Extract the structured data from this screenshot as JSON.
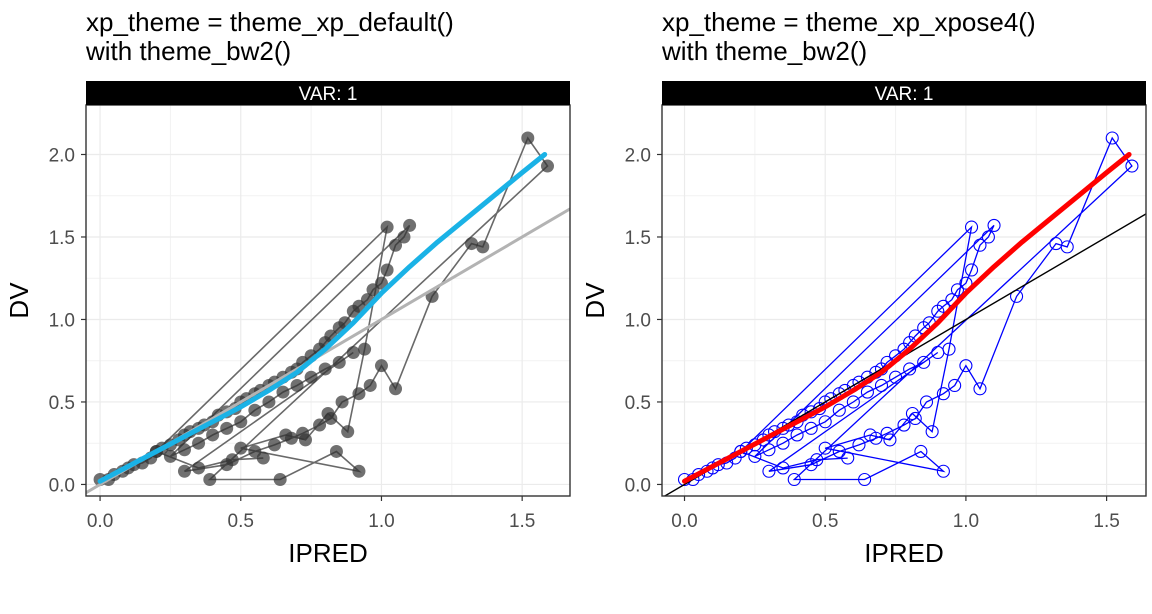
{
  "chart_data": [
    {
      "type": "scatter",
      "title": "xp_theme = theme_xp_default()",
      "subtitle": "with theme_bw2()",
      "strip": "VAR: 1",
      "xlabel": "IPRED",
      "ylabel": "DV",
      "xlim": [
        -0.05,
        1.67
      ],
      "ylim": [
        -0.07,
        2.3
      ],
      "xticks": [
        "0.0",
        "0.5",
        "1.0",
        "1.5"
      ],
      "yticks": [
        "0.0",
        "0.5",
        "1.0",
        "1.5",
        "2.0"
      ],
      "grid": true,
      "legend": "none",
      "colors": {
        "points": "#333333",
        "lines": "#595959",
        "smooth": "#1ab2e6",
        "identity": "#b3b3b3"
      },
      "marker": "filled-circle",
      "identity_line": {
        "slope": 1,
        "intercept": 0
      },
      "smooth": {
        "x": [
          0.0,
          0.1,
          0.2,
          0.3,
          0.4,
          0.5,
          0.6,
          0.7,
          0.8,
          0.9,
          1.0,
          1.1,
          1.2,
          1.3,
          1.4,
          1.5,
          1.58
        ],
        "y": [
          0.02,
          0.11,
          0.2,
          0.29,
          0.38,
          0.47,
          0.57,
          0.68,
          0.82,
          0.98,
          1.16,
          1.32,
          1.47,
          1.61,
          1.75,
          1.89,
          2.0
        ]
      },
      "points": {
        "x": [
          0.0,
          0.03,
          0.05,
          0.08,
          0.1,
          0.12,
          0.15,
          0.18,
          0.2,
          0.22,
          0.25,
          0.28,
          0.3,
          0.32,
          0.35,
          0.37,
          0.4,
          0.42,
          0.45,
          0.48,
          0.5,
          0.52,
          0.55,
          0.57,
          0.6,
          0.62,
          0.65,
          0.68,
          0.7,
          0.72,
          0.75,
          0.78,
          0.8,
          0.82,
          0.85,
          0.87,
          0.9,
          0.92,
          0.95,
          0.97,
          1.0,
          1.02,
          1.05,
          1.08,
          1.1,
          0.25,
          0.3,
          0.35,
          0.4,
          0.45,
          0.5,
          0.55,
          0.6,
          0.65,
          0.7,
          0.75,
          0.8,
          0.85,
          0.9,
          0.3,
          0.45,
          0.55,
          0.62,
          0.68,
          0.72,
          0.78,
          0.82,
          0.86,
          0.92,
          0.96,
          1.0,
          1.05,
          1.18,
          1.32,
          1.36,
          1.52,
          1.59,
          0.39,
          0.64,
          0.84,
          0.92,
          0.5,
          0.66,
          0.73,
          0.81,
          0.88,
          0.94,
          1.02,
          0.2,
          0.35,
          0.47,
          0.58
        ],
        "y": [
          0.03,
          0.03,
          0.06,
          0.08,
          0.1,
          0.12,
          0.13,
          0.16,
          0.2,
          0.22,
          0.24,
          0.27,
          0.3,
          0.32,
          0.34,
          0.36,
          0.38,
          0.42,
          0.44,
          0.46,
          0.5,
          0.52,
          0.55,
          0.57,
          0.6,
          0.62,
          0.65,
          0.68,
          0.7,
          0.74,
          0.78,
          0.82,
          0.86,
          0.9,
          0.95,
          0.98,
          1.05,
          1.08,
          1.12,
          1.18,
          1.22,
          1.3,
          1.45,
          1.5,
          1.57,
          0.17,
          0.21,
          0.25,
          0.3,
          0.34,
          0.38,
          0.45,
          0.5,
          0.56,
          0.6,
          0.65,
          0.7,
          0.74,
          0.8,
          0.08,
          0.12,
          0.2,
          0.24,
          0.28,
          0.31,
          0.36,
          0.4,
          0.5,
          0.55,
          0.6,
          0.72,
          0.58,
          1.14,
          1.46,
          1.44,
          2.1,
          1.93,
          0.03,
          0.03,
          0.2,
          0.08,
          0.22,
          0.3,
          0.27,
          0.43,
          0.32,
          0.82,
          1.56,
          0.2,
          0.1,
          0.15,
          0.16
        ]
      }
    },
    {
      "type": "scatter",
      "title": "xp_theme = theme_xp_xpose4()",
      "subtitle": "with theme_bw2()",
      "strip": "VAR: 1",
      "xlabel": "IPRED",
      "ylabel": "DV",
      "xlim": [
        -0.08,
        1.64
      ],
      "ylim": [
        -0.07,
        2.3
      ],
      "xticks": [
        "0.0",
        "0.5",
        "1.0",
        "1.5"
      ],
      "yticks": [
        "0.0",
        "0.5",
        "1.0",
        "1.5",
        "2.0"
      ],
      "grid": true,
      "legend": "none",
      "colors": {
        "points": "#0000ff",
        "lines": "#0000ff",
        "smooth": "#ff0000",
        "identity": "#000000"
      },
      "marker": "open-circle",
      "identity_line": {
        "slope": 1,
        "intercept": 0
      },
      "smooth": {
        "x": [
          0.0,
          0.1,
          0.2,
          0.3,
          0.4,
          0.5,
          0.6,
          0.7,
          0.8,
          0.9,
          1.0,
          1.1,
          1.2,
          1.3,
          1.4,
          1.5,
          1.58
        ],
        "y": [
          0.02,
          0.11,
          0.2,
          0.29,
          0.38,
          0.47,
          0.57,
          0.68,
          0.82,
          0.98,
          1.16,
          1.32,
          1.47,
          1.61,
          1.75,
          1.89,
          2.0
        ]
      },
      "points": {
        "x": [
          0.0,
          0.03,
          0.05,
          0.08,
          0.1,
          0.12,
          0.15,
          0.18,
          0.2,
          0.22,
          0.25,
          0.28,
          0.3,
          0.32,
          0.35,
          0.37,
          0.4,
          0.42,
          0.45,
          0.48,
          0.5,
          0.52,
          0.55,
          0.57,
          0.6,
          0.62,
          0.65,
          0.68,
          0.7,
          0.72,
          0.75,
          0.78,
          0.8,
          0.82,
          0.85,
          0.87,
          0.9,
          0.92,
          0.95,
          0.97,
          1.0,
          1.02,
          1.05,
          1.08,
          1.1,
          0.25,
          0.3,
          0.35,
          0.4,
          0.45,
          0.5,
          0.55,
          0.6,
          0.65,
          0.7,
          0.75,
          0.8,
          0.85,
          0.9,
          0.3,
          0.45,
          0.55,
          0.62,
          0.68,
          0.72,
          0.78,
          0.82,
          0.86,
          0.92,
          0.96,
          1.0,
          1.05,
          1.18,
          1.32,
          1.36,
          1.52,
          1.59,
          0.39,
          0.64,
          0.84,
          0.92,
          0.5,
          0.66,
          0.73,
          0.81,
          0.88,
          0.94,
          1.02,
          0.2,
          0.35,
          0.47,
          0.58
        ],
        "y": [
          0.03,
          0.03,
          0.06,
          0.08,
          0.1,
          0.12,
          0.13,
          0.16,
          0.2,
          0.22,
          0.24,
          0.27,
          0.3,
          0.32,
          0.34,
          0.36,
          0.38,
          0.42,
          0.44,
          0.46,
          0.5,
          0.52,
          0.55,
          0.57,
          0.6,
          0.62,
          0.65,
          0.68,
          0.7,
          0.74,
          0.78,
          0.82,
          0.86,
          0.9,
          0.95,
          0.98,
          1.05,
          1.08,
          1.12,
          1.18,
          1.22,
          1.3,
          1.45,
          1.5,
          1.57,
          0.17,
          0.21,
          0.25,
          0.3,
          0.34,
          0.38,
          0.45,
          0.5,
          0.56,
          0.6,
          0.65,
          0.7,
          0.74,
          0.8,
          0.08,
          0.12,
          0.2,
          0.24,
          0.28,
          0.31,
          0.36,
          0.4,
          0.5,
          0.55,
          0.6,
          0.72,
          0.58,
          1.14,
          1.46,
          1.44,
          2.1,
          1.93,
          0.03,
          0.03,
          0.2,
          0.08,
          0.22,
          0.3,
          0.27,
          0.43,
          0.32,
          0.82,
          1.56,
          0.2,
          0.1,
          0.15,
          0.16
        ]
      }
    }
  ]
}
